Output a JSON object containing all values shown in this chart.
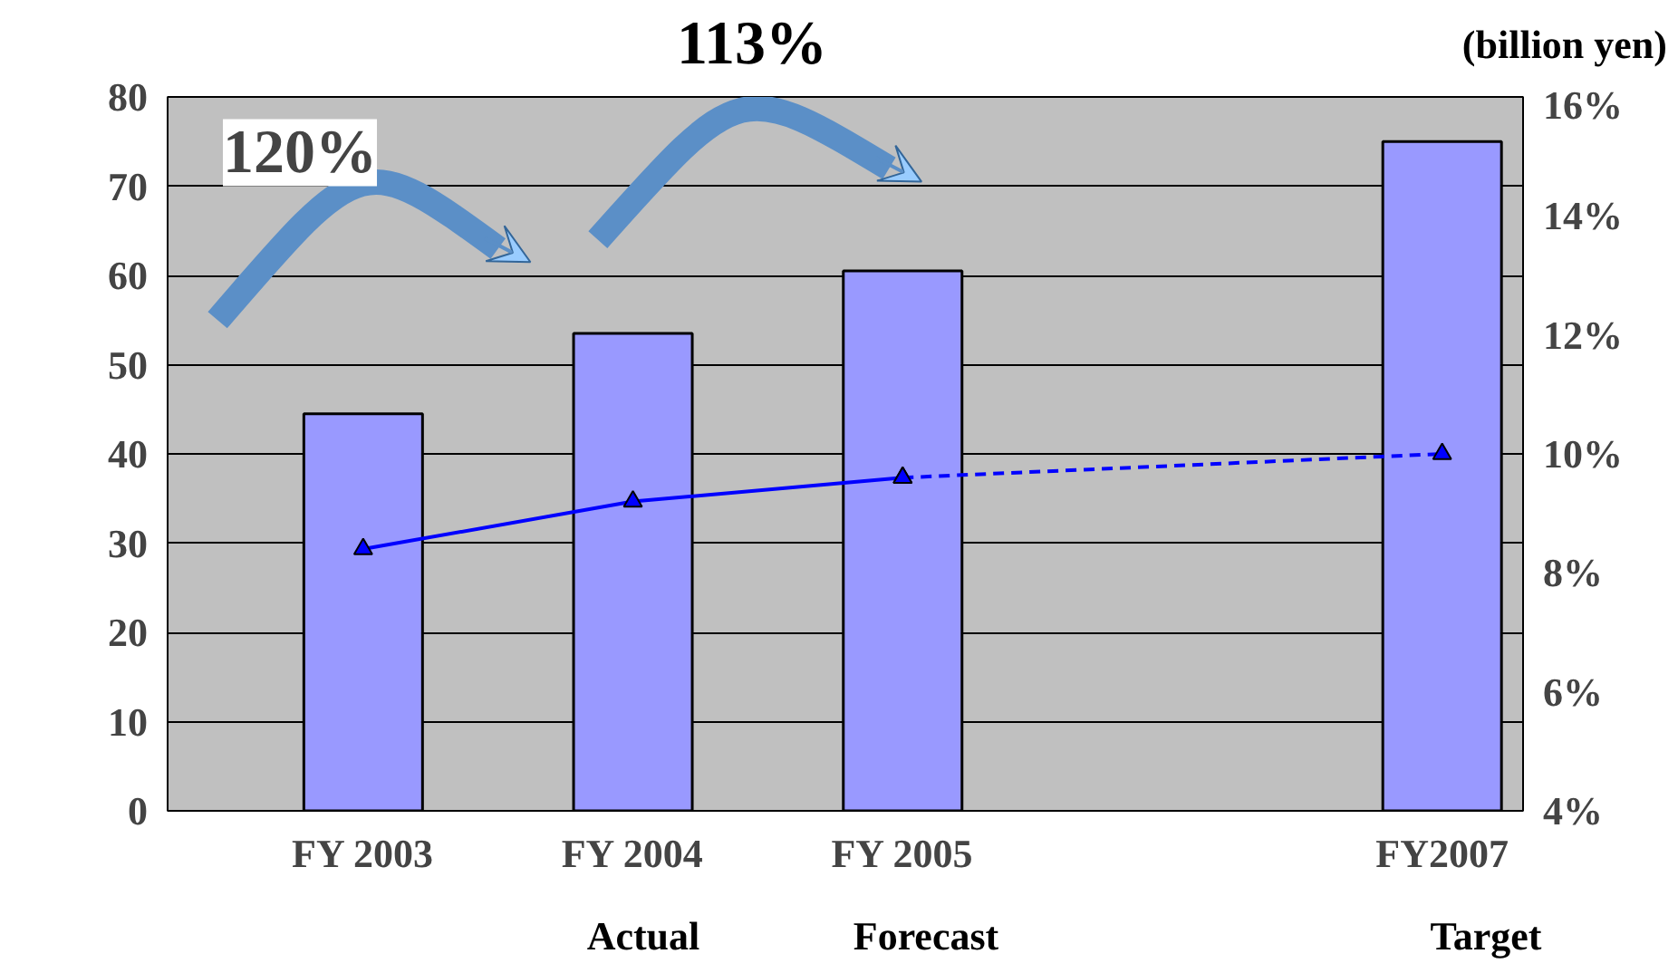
{
  "chart_data": {
    "type": "bar",
    "categories": [
      "FY 2003",
      "FY 2004",
      "FY 2005",
      null,
      "FY2007"
    ],
    "series": [
      {
        "color": "#9999ff",
        "values": [
          44.5,
          53.5,
          60.5,
          null,
          75
        ]
      },
      {
        "type": "line",
        "axis": "y2",
        "color": "#0000ff",
        "line_style": "solid",
        "marker": "triangle",
        "values": [
          8.4,
          9.2,
          9.6,
          null,
          null
        ]
      },
      {
        "type": "line",
        "axis": "y2",
        "color": "#0000ff",
        "line_style": "dashed",
        "marker": "triangle",
        "values": [
          null,
          null,
          9.6,
          null,
          10.0
        ]
      }
    ],
    "ylim": [
      0,
      80
    ],
    "yticks": [
      0,
      10,
      20,
      30,
      40,
      50,
      60,
      70,
      80
    ],
    "y2lim": [
      4,
      16
    ],
    "y2ticks": [
      {
        "value": 4,
        "label": "4%"
      },
      {
        "value": 6,
        "label": "6%"
      },
      {
        "value": 8,
        "label": "8%"
      },
      {
        "value": 10,
        "label": "10%"
      },
      {
        "value": 12,
        "label": "12%"
      },
      {
        "value": 14,
        "label": "14%"
      },
      {
        "value": 16,
        "label": "16%"
      }
    ],
    "grid": "y",
    "annotations": [
      "(billion yen)",
      "120%",
      "113%",
      "Actual",
      "Forecast",
      "Target"
    ]
  }
}
